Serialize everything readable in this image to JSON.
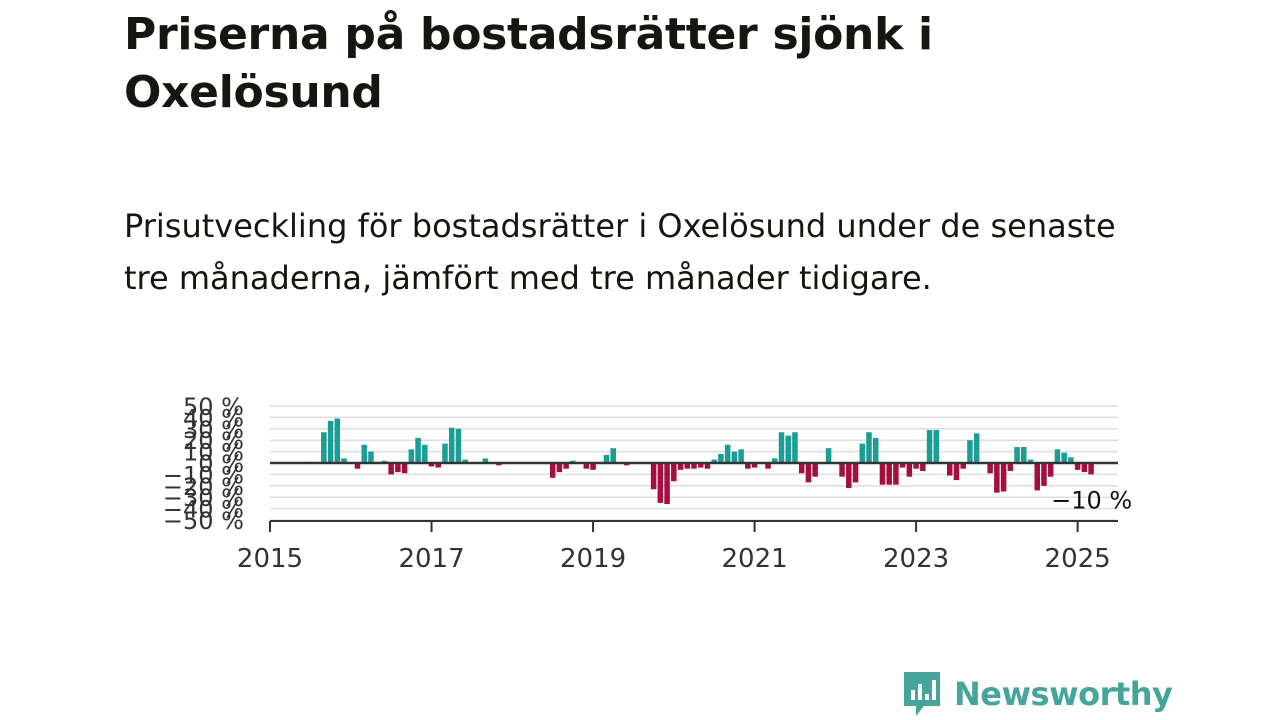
{
  "header": {
    "title": "Priserna på bostadsrätter sjönk i Oxelösund",
    "subtitle": "Prisutveckling för bostadsrätter i Oxelösund under de senaste tre månaderna, jämfört med tre månader tidigare."
  },
  "brand": {
    "name": "Newsworthy",
    "icon": "newsworthy-logo-icon",
    "color": "#46a59a"
  },
  "colors": {
    "positive": "#1a9e96",
    "negative": "#a50f3f",
    "grid": "#dddddd",
    "baseline": "#333333"
  },
  "chart_data": {
    "type": "bar",
    "title": "",
    "xlabel": "",
    "ylabel": "",
    "ylim": [
      -50,
      50
    ],
    "y_ticks": [
      "50 %",
      "40 %",
      "30 %",
      "20 %",
      "10 %",
      "0 %",
      "−10 %",
      "−20 %",
      "−30 %",
      "−40 %",
      "−50 %"
    ],
    "x_ticks": [
      "2015",
      "2017",
      "2019",
      "2021",
      "2023",
      "2025"
    ],
    "x_range": [
      "2015-01",
      "2025-07"
    ],
    "grid": true,
    "last_value_label": "−10 %",
    "series": [
      {
        "values": [
          {
            "x": "2015-07",
            "y": 1
          },
          {
            "x": "2015-08",
            "y": 0
          },
          {
            "x": "2015-09",
            "y": 27
          },
          {
            "x": "2015-10",
            "y": 37
          },
          {
            "x": "2015-11",
            "y": 39
          },
          {
            "x": "2015-12",
            "y": 4
          },
          {
            "x": "2016-01",
            "y": 0
          },
          {
            "x": "2016-02",
            "y": -5
          },
          {
            "x": "2016-03",
            "y": 16
          },
          {
            "x": "2016-04",
            "y": 10
          },
          {
            "x": "2016-05",
            "y": 0
          },
          {
            "x": "2016-06",
            "y": 2
          },
          {
            "x": "2016-07",
            "y": -10
          },
          {
            "x": "2016-08",
            "y": -8
          },
          {
            "x": "2016-09",
            "y": -9
          },
          {
            "x": "2016-10",
            "y": 12
          },
          {
            "x": "2016-11",
            "y": 22
          },
          {
            "x": "2016-12",
            "y": 16
          },
          {
            "x": "2017-01",
            "y": -3
          },
          {
            "x": "2017-02",
            "y": -4
          },
          {
            "x": "2017-03",
            "y": 17
          },
          {
            "x": "2017-04",
            "y": 31
          },
          {
            "x": "2017-05",
            "y": 30
          },
          {
            "x": "2017-06",
            "y": 3
          },
          {
            "x": "2017-07",
            "y": 0
          },
          {
            "x": "2017-08",
            "y": 1
          },
          {
            "x": "2017-09",
            "y": 4
          },
          {
            "x": "2017-10",
            "y": 0
          },
          {
            "x": "2017-11",
            "y": -2
          },
          {
            "x": "2017-12",
            "y": 0
          },
          {
            "x": "2018-01",
            "y": 0
          },
          {
            "x": "2018-02",
            "y": 0
          },
          {
            "x": "2018-03",
            "y": 0
          },
          {
            "x": "2018-04",
            "y": 0
          },
          {
            "x": "2018-05",
            "y": 0
          },
          {
            "x": "2018-06",
            "y": 0
          },
          {
            "x": "2018-07",
            "y": -13
          },
          {
            "x": "2018-08",
            "y": -8
          },
          {
            "x": "2018-09",
            "y": -5
          },
          {
            "x": "2018-10",
            "y": 2
          },
          {
            "x": "2018-11",
            "y": 0
          },
          {
            "x": "2018-12",
            "y": -5
          },
          {
            "x": "2019-01",
            "y": -6
          },
          {
            "x": "2019-02",
            "y": 0
          },
          {
            "x": "2019-03",
            "y": 7
          },
          {
            "x": "2019-04",
            "y": 13
          },
          {
            "x": "2019-05",
            "y": 0
          },
          {
            "x": "2019-06",
            "y": -2
          },
          {
            "x": "2019-07",
            "y": 0
          },
          {
            "x": "2019-08",
            "y": 0
          },
          {
            "x": "2019-09",
            "y": 0
          },
          {
            "x": "2019-10",
            "y": -23
          },
          {
            "x": "2019-11",
            "y": -35
          },
          {
            "x": "2019-12",
            "y": -36
          },
          {
            "x": "2020-01",
            "y": -16
          },
          {
            "x": "2020-02",
            "y": -6
          },
          {
            "x": "2020-03",
            "y": -5
          },
          {
            "x": "2020-04",
            "y": -5
          },
          {
            "x": "2020-05",
            "y": -4
          },
          {
            "x": "2020-06",
            "y": -5
          },
          {
            "x": "2020-07",
            "y": 3
          },
          {
            "x": "2020-08",
            "y": 8
          },
          {
            "x": "2020-09",
            "y": 16
          },
          {
            "x": "2020-10",
            "y": 10
          },
          {
            "x": "2020-11",
            "y": 12
          },
          {
            "x": "2020-12",
            "y": -5
          },
          {
            "x": "2021-01",
            "y": -4
          },
          {
            "x": "2021-02",
            "y": 0
          },
          {
            "x": "2021-03",
            "y": -5
          },
          {
            "x": "2021-04",
            "y": 4
          },
          {
            "x": "2021-05",
            "y": 27
          },
          {
            "x": "2021-06",
            "y": 24
          },
          {
            "x": "2021-07",
            "y": 27
          },
          {
            "x": "2021-08",
            "y": -9
          },
          {
            "x": "2021-09",
            "y": -17
          },
          {
            "x": "2021-10",
            "y": -12
          },
          {
            "x": "2021-11",
            "y": 0
          },
          {
            "x": "2021-12",
            "y": 13
          },
          {
            "x": "2022-01",
            "y": 0
          },
          {
            "x": "2022-02",
            "y": -12
          },
          {
            "x": "2022-03",
            "y": -22
          },
          {
            "x": "2022-04",
            "y": -17
          },
          {
            "x": "2022-05",
            "y": 17
          },
          {
            "x": "2022-06",
            "y": 27
          },
          {
            "x": "2022-07",
            "y": 22
          },
          {
            "x": "2022-08",
            "y": -19
          },
          {
            "x": "2022-09",
            "y": -19
          },
          {
            "x": "2022-10",
            "y": -19
          },
          {
            "x": "2022-11",
            "y": -4
          },
          {
            "x": "2022-12",
            "y": -12
          },
          {
            "x": "2023-01",
            "y": -5
          },
          {
            "x": "2023-02",
            "y": -7
          },
          {
            "x": "2023-03",
            "y": 29
          },
          {
            "x": "2023-04",
            "y": 29
          },
          {
            "x": "2023-05",
            "y": 0
          },
          {
            "x": "2023-06",
            "y": -11
          },
          {
            "x": "2023-07",
            "y": -15
          },
          {
            "x": "2023-08",
            "y": -5
          },
          {
            "x": "2023-09",
            "y": 20
          },
          {
            "x": "2023-10",
            "y": 26
          },
          {
            "x": "2023-11",
            "y": 0
          },
          {
            "x": "2023-12",
            "y": -9
          },
          {
            "x": "2024-01",
            "y": -26
          },
          {
            "x": "2024-02",
            "y": -25
          },
          {
            "x": "2024-03",
            "y": -7
          },
          {
            "x": "2024-04",
            "y": 14
          },
          {
            "x": "2024-05",
            "y": 14
          },
          {
            "x": "2024-06",
            "y": 3
          },
          {
            "x": "2024-07",
            "y": -24
          },
          {
            "x": "2024-08",
            "y": -20
          },
          {
            "x": "2024-09",
            "y": -12
          },
          {
            "x": "2024-10",
            "y": 12
          },
          {
            "x": "2024-11",
            "y": 9
          },
          {
            "x": "2024-12",
            "y": 5
          },
          {
            "x": "2025-01",
            "y": -6
          },
          {
            "x": "2025-02",
            "y": -8
          },
          {
            "x": "2025-03",
            "y": -10
          }
        ]
      }
    ]
  }
}
